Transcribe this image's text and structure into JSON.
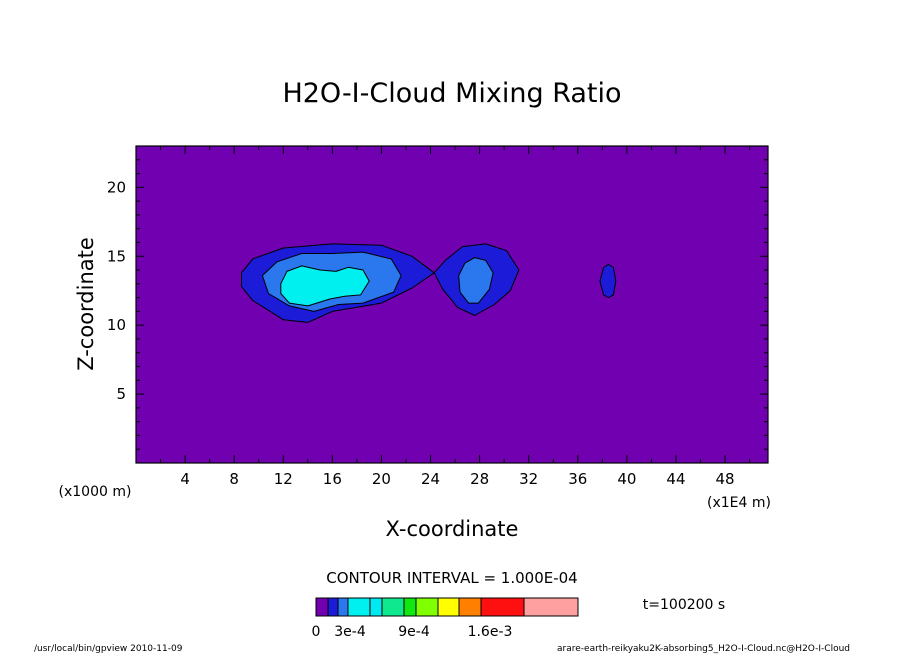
{
  "chart_data": {
    "type": "contour",
    "title": "H2O-I-Cloud Mixing Ratio",
    "xlabel": "X-coordinate",
    "ylabel": "Z-coordinate",
    "x_unit_left": "(x1000 m)",
    "x_unit_right": "(x1E4 m)",
    "xlim": [
      0,
      51.5
    ],
    "ylim": [
      0,
      23
    ],
    "x_ticks": [
      4,
      8,
      12,
      16,
      20,
      24,
      28,
      32,
      36,
      40,
      44,
      48
    ],
    "y_ticks": [
      5,
      10,
      15,
      20
    ],
    "contour_interval_label": "CONTOUR INTERVAL = 1.000E-04",
    "time_label": "t=100200 s",
    "background_level": "0-1e-4",
    "levels": [
      {
        "range": "1e-4-2e-4",
        "color": "#1b1bd8"
      },
      {
        "range": "2e-4-3e-4",
        "color": "#2a77ee"
      },
      {
        "range": "3e-4-4e-4",
        "color": "#00f0f0"
      }
    ],
    "regions": [
      {
        "level": 1,
        "polygon": [
          [
            8.6,
            13.8
          ],
          [
            9.5,
            14.8
          ],
          [
            12,
            15.6
          ],
          [
            16,
            15.9
          ],
          [
            20,
            15.8
          ],
          [
            22.5,
            15.0
          ],
          [
            24.3,
            13.8
          ],
          [
            22.5,
            12.7
          ],
          [
            20,
            11.6
          ],
          [
            16,
            11.0
          ],
          [
            14,
            10.2
          ],
          [
            12,
            10.4
          ],
          [
            9.5,
            11.8
          ],
          [
            8.6,
            12.8
          ]
        ]
      },
      {
        "level": 1,
        "polygon": [
          [
            24.3,
            13.8
          ],
          [
            25.2,
            14.7
          ],
          [
            26.6,
            15.7
          ],
          [
            28.5,
            15.9
          ],
          [
            30.2,
            15.4
          ],
          [
            31.2,
            14.0
          ],
          [
            30.5,
            12.5
          ],
          [
            29.2,
            11.5
          ],
          [
            27.6,
            10.7
          ],
          [
            26.2,
            11.3
          ],
          [
            25.0,
            12.6
          ]
        ]
      },
      {
        "level": 1,
        "polygon": [
          [
            37.8,
            13.2
          ],
          [
            38.1,
            14.2
          ],
          [
            38.5,
            14.4
          ],
          [
            38.9,
            14.2
          ],
          [
            39.1,
            13.2
          ],
          [
            38.9,
            12.2
          ],
          [
            38.5,
            12.0
          ],
          [
            38.1,
            12.2
          ]
        ]
      },
      {
        "level": 2,
        "polygon": [
          [
            10.3,
            13.6
          ],
          [
            11.5,
            14.6
          ],
          [
            13.5,
            15.2
          ],
          [
            16,
            15.2
          ],
          [
            18.5,
            15.3
          ],
          [
            20.8,
            14.8
          ],
          [
            21.6,
            13.6
          ],
          [
            21.0,
            12.4
          ],
          [
            18.5,
            11.6
          ],
          [
            16.5,
            11.5
          ],
          [
            14.5,
            11.0
          ],
          [
            12.5,
            11.4
          ],
          [
            10.8,
            12.3
          ]
        ]
      },
      {
        "level": 2,
        "polygon": [
          [
            26.3,
            13.6
          ],
          [
            26.8,
            14.5
          ],
          [
            27.6,
            14.9
          ],
          [
            28.5,
            14.7
          ],
          [
            29.1,
            13.8
          ],
          [
            28.8,
            12.6
          ],
          [
            27.9,
            11.6
          ],
          [
            27.1,
            11.6
          ],
          [
            26.4,
            12.4
          ]
        ]
      },
      {
        "level": 3,
        "polygon": [
          [
            11.8,
            13.0
          ],
          [
            12.3,
            13.9
          ],
          [
            13.5,
            14.3
          ],
          [
            15.0,
            14.0
          ],
          [
            16.3,
            13.9
          ],
          [
            17.3,
            14.2
          ],
          [
            18.5,
            14.0
          ],
          [
            19.0,
            13.2
          ],
          [
            18.3,
            12.2
          ],
          [
            17.0,
            12.1
          ],
          [
            15.8,
            11.9
          ],
          [
            14.0,
            11.4
          ],
          [
            12.5,
            11.6
          ],
          [
            11.8,
            12.3
          ]
        ]
      }
    ]
  },
  "colorbar": {
    "colors": [
      "#7000b0",
      "#1b1bd8",
      "#2a77ee",
      "#00f0f0",
      "#00e8f0",
      "#10e890",
      "#10e810",
      "#80ff00",
      "#ffff00",
      "#ff8000",
      "#ff1010",
      "#ffa0a0"
    ],
    "tick_labels": [
      "0",
      "3e-4",
      "9e-4",
      "1.6e-3"
    ]
  },
  "footer": {
    "left": "/usr/local/bin/gpview  2010-11-09",
    "right": "arare-earth-reikyaku2K-absorbing5_H2O-I-Cloud.nc@H2O-I-Cloud"
  }
}
